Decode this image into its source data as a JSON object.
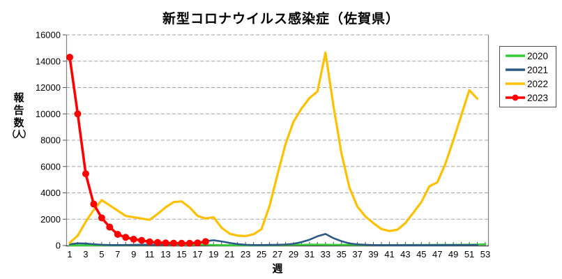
{
  "chart_data": {
    "type": "line",
    "title": "新型コロナウイルス感染症（佐賀県）",
    "xlabel": "週",
    "ylabel": "報告数（人）",
    "ylabel_lines": [
      "報",
      "告",
      "数",
      "（人）"
    ],
    "xlim": [
      1,
      53
    ],
    "ylim": [
      0,
      16000
    ],
    "x_ticks": [
      1,
      3,
      5,
      7,
      9,
      11,
      13,
      15,
      17,
      19,
      21,
      23,
      25,
      27,
      29,
      31,
      33,
      35,
      37,
      39,
      41,
      43,
      45,
      47,
      49,
      51,
      53
    ],
    "y_ticks": [
      0,
      2000,
      4000,
      6000,
      8000,
      10000,
      12000,
      14000,
      16000
    ],
    "grid": "horizontal-dashed",
    "legend_position": "right",
    "series": [
      {
        "name": "2020",
        "color": "#32CD32",
        "marker": null,
        "values": [
          10,
          10,
          10,
          15,
          20,
          25,
          30,
          30,
          40,
          50,
          55,
          60,
          70,
          80,
          90,
          90,
          80,
          60,
          40,
          30,
          25,
          25,
          25,
          25,
          30,
          30,
          35,
          45,
          55,
          60,
          70,
          70,
          65,
          60,
          55,
          50,
          45,
          40,
          40,
          40,
          40,
          40,
          45,
          45,
          50,
          50,
          55,
          60,
          60,
          65,
          70,
          80,
          100
        ]
      },
      {
        "name": "2021",
        "color": "#2D5986",
        "marker": null,
        "values": [
          100,
          170,
          150,
          100,
          60,
          40,
          40,
          40,
          50,
          60,
          60,
          70,
          90,
          110,
          130,
          170,
          230,
          330,
          400,
          310,
          200,
          110,
          60,
          40,
          40,
          50,
          60,
          80,
          130,
          260,
          440,
          700,
          880,
          560,
          330,
          160,
          90,
          60,
          40,
          30,
          30,
          30,
          30,
          30,
          30,
          30,
          30,
          30,
          35,
          40,
          40,
          40
        ]
      },
      {
        "name": "2022",
        "color": "#FFC000",
        "marker": null,
        "values": [
          200,
          750,
          1800,
          2700,
          3450,
          3050,
          2650,
          2250,
          2150,
          2050,
          1950,
          2400,
          2900,
          3300,
          3350,
          2900,
          2250,
          2050,
          2150,
          1350,
          900,
          750,
          720,
          850,
          1250,
          3000,
          5400,
          7700,
          9400,
          10400,
          11200,
          11700,
          14650,
          10600,
          7000,
          4400,
          2950,
          2200,
          1700,
          1250,
          1100,
          1200,
          1700,
          2500,
          3300,
          4500,
          4800,
          6200,
          8000,
          9900,
          11800,
          11150
        ]
      },
      {
        "name": "2023",
        "color": "#FF0000",
        "marker": "circle",
        "values": [
          14300,
          10000,
          5450,
          3150,
          2100,
          1400,
          850,
          620,
          480,
          390,
          280,
          230,
          200,
          180,
          170,
          170,
          200,
          300
        ]
      }
    ]
  }
}
